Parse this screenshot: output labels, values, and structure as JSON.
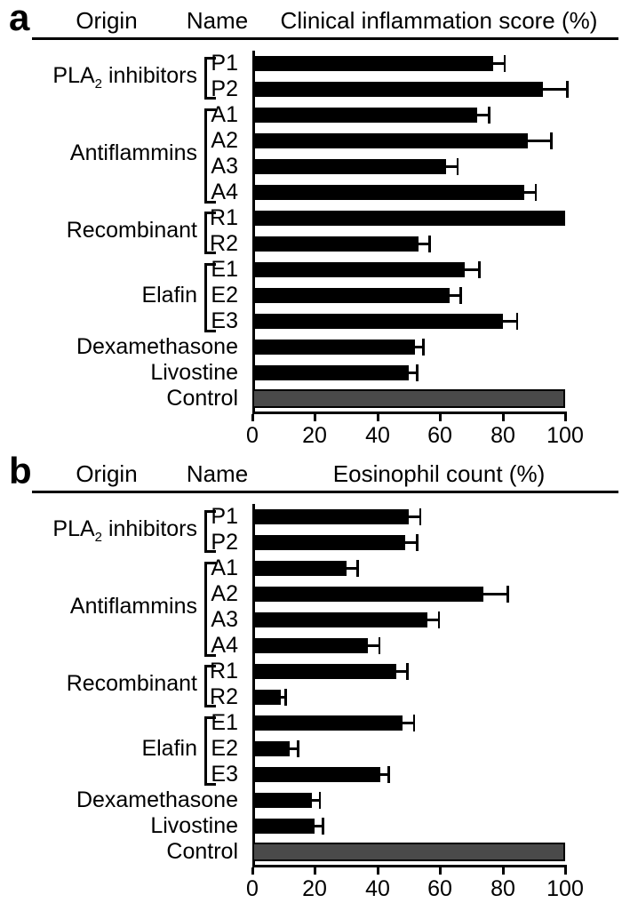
{
  "chart_data": [
    {
      "panel_label": "a",
      "type": "bar",
      "orientation": "horizontal",
      "columns": [
        "Origin",
        "Name",
        "Clinical inflammation score (%)"
      ],
      "title": "Clinical inflammation score (%)",
      "groups": [
        {
          "label_pre": "PLA",
          "label_sub": "2",
          "label_post": " inhibitors",
          "names": [
            "P1",
            "P2"
          ]
        },
        {
          "label_pre": "Antiflammins",
          "label_sub": "",
          "label_post": "",
          "names": [
            "A1",
            "A2",
            "A3",
            "A4"
          ]
        },
        {
          "label_pre": "Recombinant",
          "label_sub": "",
          "label_post": "",
          "names": [
            "R1",
            "R2"
          ]
        },
        {
          "label_pre": "Elafin",
          "label_sub": "",
          "label_post": "",
          "names": [
            "E1",
            "E2",
            "E3"
          ]
        }
      ],
      "categories": [
        "P1",
        "P2",
        "A1",
        "A2",
        "A3",
        "A4",
        "R1",
        "R2",
        "E1",
        "E2",
        "E3",
        "Dexamethasone",
        "Livostine",
        "Control"
      ],
      "values": [
        77,
        93,
        72,
        88,
        62,
        87,
        100,
        53,
        68,
        63,
        80,
        52,
        50,
        100
      ],
      "errors": [
        4,
        8,
        4,
        8,
        4,
        4,
        0,
        4,
        5,
        4,
        5,
        3,
        3,
        0
      ],
      "xlim": [
        0,
        100
      ],
      "xticks": [
        0,
        20,
        40,
        60,
        80,
        100
      ],
      "bar_color": "#000000",
      "control_bar_color": "#4a4a4a",
      "legend": "none",
      "grid": false
    },
    {
      "panel_label": "b",
      "type": "bar",
      "orientation": "horizontal",
      "columns": [
        "Origin",
        "Name",
        "Eosinophil count (%)"
      ],
      "title": "Eosinophil count (%)",
      "groups": [
        {
          "label_pre": "PLA",
          "label_sub": "2",
          "label_post": " inhibitors",
          "names": [
            "P1",
            "P2"
          ]
        },
        {
          "label_pre": "Antiflammins",
          "label_sub": "",
          "label_post": "",
          "names": [
            "A1",
            "A2",
            "A3",
            "A4"
          ]
        },
        {
          "label_pre": "Recombinant",
          "label_sub": "",
          "label_post": "",
          "names": [
            "R1",
            "R2"
          ]
        },
        {
          "label_pre": "Elafin",
          "label_sub": "",
          "label_post": "",
          "names": [
            "E1",
            "E2",
            "E3"
          ]
        }
      ],
      "categories": [
        "P1",
        "P2",
        "A1",
        "A2",
        "A3",
        "A4",
        "R1",
        "R2",
        "E1",
        "E2",
        "E3",
        "Dexamethasone",
        "Livostine",
        "Control"
      ],
      "values": [
        50,
        49,
        30,
        74,
        56,
        37,
        46,
        9,
        48,
        12,
        41,
        19,
        20,
        100
      ],
      "errors": [
        4,
        4,
        4,
        8,
        4,
        4,
        4,
        2,
        4,
        3,
        3,
        3,
        3,
        0
      ],
      "xlim": [
        0,
        100
      ],
      "xticks": [
        0,
        20,
        40,
        60,
        80,
        100
      ],
      "bar_color": "#000000",
      "control_bar_color": "#4a4a4a",
      "legend": "none",
      "grid": false
    }
  ]
}
